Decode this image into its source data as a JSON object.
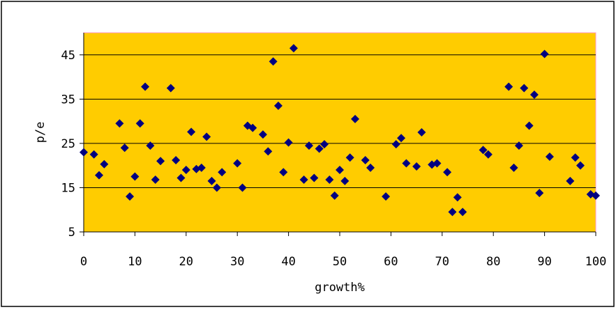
{
  "chart_data": {
    "type": "scatter",
    "title": "",
    "xlabel": "growth%",
    "ylabel": "p/e",
    "xlim": [
      0,
      100
    ],
    "ylim": [
      5,
      50
    ],
    "x_ticks": [
      0,
      10,
      20,
      30,
      40,
      50,
      60,
      70,
      80,
      90,
      100
    ],
    "y_ticks": [
      5,
      15,
      25,
      35,
      45
    ],
    "grid": "horizontal",
    "legend": "none",
    "colors": {
      "plot_background": "#ffcc00",
      "plot_border": "#ff99cc",
      "marker": "#000080",
      "gridline": "#000000"
    },
    "marker": "diamond",
    "series": [
      {
        "points": [
          [
            0,
            23
          ],
          [
            2,
            22.5
          ],
          [
            3,
            17.8
          ],
          [
            4,
            20.3
          ],
          [
            7,
            29.5
          ],
          [
            8,
            24
          ],
          [
            9,
            13
          ],
          [
            10,
            17.5
          ],
          [
            11,
            29.5
          ],
          [
            12,
            37.8
          ],
          [
            13,
            24.5
          ],
          [
            14,
            16.8
          ],
          [
            15,
            21
          ],
          [
            17,
            37.5
          ],
          [
            18,
            21.2
          ],
          [
            19,
            17.2
          ],
          [
            20,
            19
          ],
          [
            21,
            27.6
          ],
          [
            22,
            19.2
          ],
          [
            23,
            19.5
          ],
          [
            24,
            26.5
          ],
          [
            25,
            16.5
          ],
          [
            26,
            15
          ],
          [
            27,
            18.5
          ],
          [
            30,
            20.5
          ],
          [
            31,
            15
          ],
          [
            32,
            29
          ],
          [
            33,
            28.5
          ],
          [
            35,
            27
          ],
          [
            36,
            23.2
          ],
          [
            37,
            43.5
          ],
          [
            38,
            33.5
          ],
          [
            39,
            18.5
          ],
          [
            40,
            25.2
          ],
          [
            41,
            46.5
          ],
          [
            43,
            16.8
          ],
          [
            44,
            24.5
          ],
          [
            45,
            17.2
          ],
          [
            46,
            23.8
          ],
          [
            47,
            24.8
          ],
          [
            48,
            16.8
          ],
          [
            49,
            13.2
          ],
          [
            50,
            19
          ],
          [
            51,
            16.5
          ],
          [
            52,
            21.8
          ],
          [
            53,
            30.5
          ],
          [
            55,
            21.2
          ],
          [
            56,
            19.5
          ],
          [
            59,
            13
          ],
          [
            61,
            24.8
          ],
          [
            62,
            26.2
          ],
          [
            63,
            20.5
          ],
          [
            65,
            19.8
          ],
          [
            66,
            27.5
          ],
          [
            68,
            20.2
          ],
          [
            69,
            20.5
          ],
          [
            71,
            18.5
          ],
          [
            72,
            9.5
          ],
          [
            73,
            12.8
          ],
          [
            74,
            9.5
          ],
          [
            78,
            23.5
          ],
          [
            79,
            22.5
          ],
          [
            83,
            37.8
          ],
          [
            84,
            19.5
          ],
          [
            85,
            24.5
          ],
          [
            86,
            37.5
          ],
          [
            87,
            29
          ],
          [
            88,
            36
          ],
          [
            89,
            13.8
          ],
          [
            90,
            45.2
          ],
          [
            91,
            22
          ],
          [
            95,
            16.5
          ],
          [
            96,
            21.8
          ],
          [
            97,
            20
          ],
          [
            99,
            13.5
          ],
          [
            100,
            13.2
          ]
        ]
      }
    ]
  }
}
